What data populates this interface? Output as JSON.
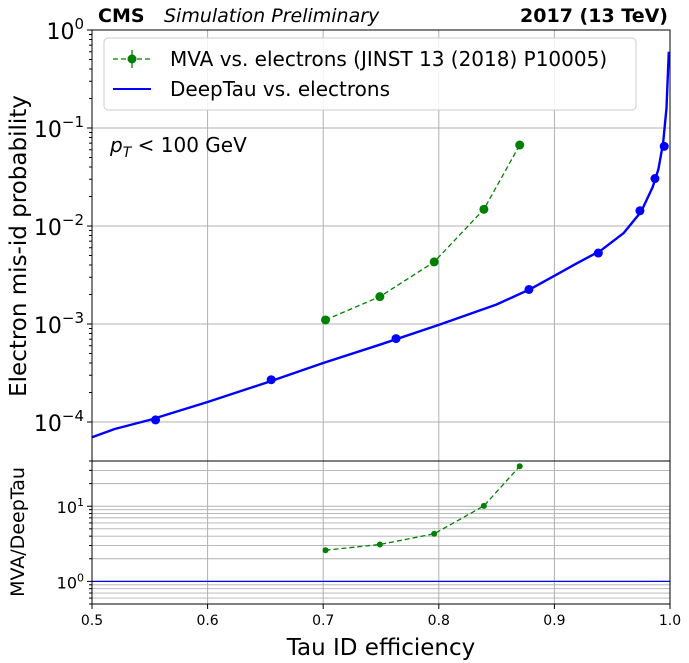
{
  "header": {
    "experiment": "CMS",
    "status": "Simulation Preliminary",
    "energy": "2017 (13 TeV)"
  },
  "annotation": {
    "var": "p",
    "sub": "T",
    "rest": " < 100 GeV"
  },
  "colors": {
    "mva": "#008000",
    "deeptau": "#0000ff",
    "grid": "#b0b0b0"
  },
  "chart_data": [
    {
      "type": "line",
      "xlabel": "",
      "ylabel": "Electron mis-id probability",
      "xlim": [
        0.5,
        1.0
      ],
      "ylim": [
        4e-05,
        1.0
      ],
      "yscale": "log",
      "grid": true,
      "legend_placement": "top-left",
      "y_ticks": [
        {
          "value": 0.0001,
          "base": "10",
          "exp": "−4"
        },
        {
          "value": 0.001,
          "base": "10",
          "exp": "−3"
        },
        {
          "value": 0.01,
          "base": "10",
          "exp": "−2"
        },
        {
          "value": 0.1,
          "base": "10",
          "exp": "−1"
        },
        {
          "value": 1.0,
          "base": "10",
          "exp": "0"
        }
      ],
      "series": [
        {
          "name": "MVA vs. electrons (JINST 13 (2018) P10005)",
          "style": "dashed-markers",
          "x": [
            0.702,
            0.749,
            0.796,
            0.839,
            0.87
          ],
          "y": [
            0.0011,
            0.0019,
            0.0043,
            0.0148,
            0.067
          ]
        },
        {
          "name": "DeepTau vs. electrons",
          "style": "solid",
          "x": [
            0.5,
            0.52,
            0.55,
            0.6,
            0.65,
            0.7,
            0.75,
            0.8,
            0.85,
            0.88,
            0.9,
            0.92,
            0.94,
            0.96,
            0.975,
            0.985,
            0.99,
            0.994,
            0.997,
            0.999
          ],
          "y": [
            7e-05,
            8.5e-05,
            0.000105,
            0.00016,
            0.00025,
            0.0004,
            0.00062,
            0.00098,
            0.00158,
            0.0023,
            0.0031,
            0.0042,
            0.0056,
            0.0085,
            0.014,
            0.025,
            0.038,
            0.07,
            0.16,
            0.6
          ]
        },
        {
          "name": "",
          "style": "markers",
          "x": [
            0.555,
            0.655,
            0.763,
            0.878,
            0.938,
            0.974,
            0.987,
            0.995
          ],
          "y": [
            0.000105,
            0.00027,
            0.00071,
            0.00225,
            0.0053,
            0.0143,
            0.0305,
            0.065
          ]
        }
      ]
    },
    {
      "type": "line",
      "xlabel": "Tau ID efficiency",
      "ylabel": "MVA/DeepTau",
      "xlim": [
        0.5,
        1.0
      ],
      "ylim": [
        0.5,
        40
      ],
      "yscale": "log",
      "grid": true,
      "x_ticks": [
        "0.5",
        "0.6",
        "0.7",
        "0.8",
        "0.9",
        "1.0"
      ],
      "y_ticks": [
        {
          "value": 1,
          "base": "10",
          "exp": "0"
        },
        {
          "value": 10,
          "base": "10",
          "exp": "1"
        }
      ],
      "reference_line": 1,
      "series": [
        {
          "name": "",
          "style": "dashed-markers",
          "x": [
            0.702,
            0.749,
            0.796,
            0.839,
            0.87
          ],
          "y": [
            2.6,
            3.1,
            4.3,
            10.1,
            34.0
          ]
        }
      ]
    }
  ]
}
